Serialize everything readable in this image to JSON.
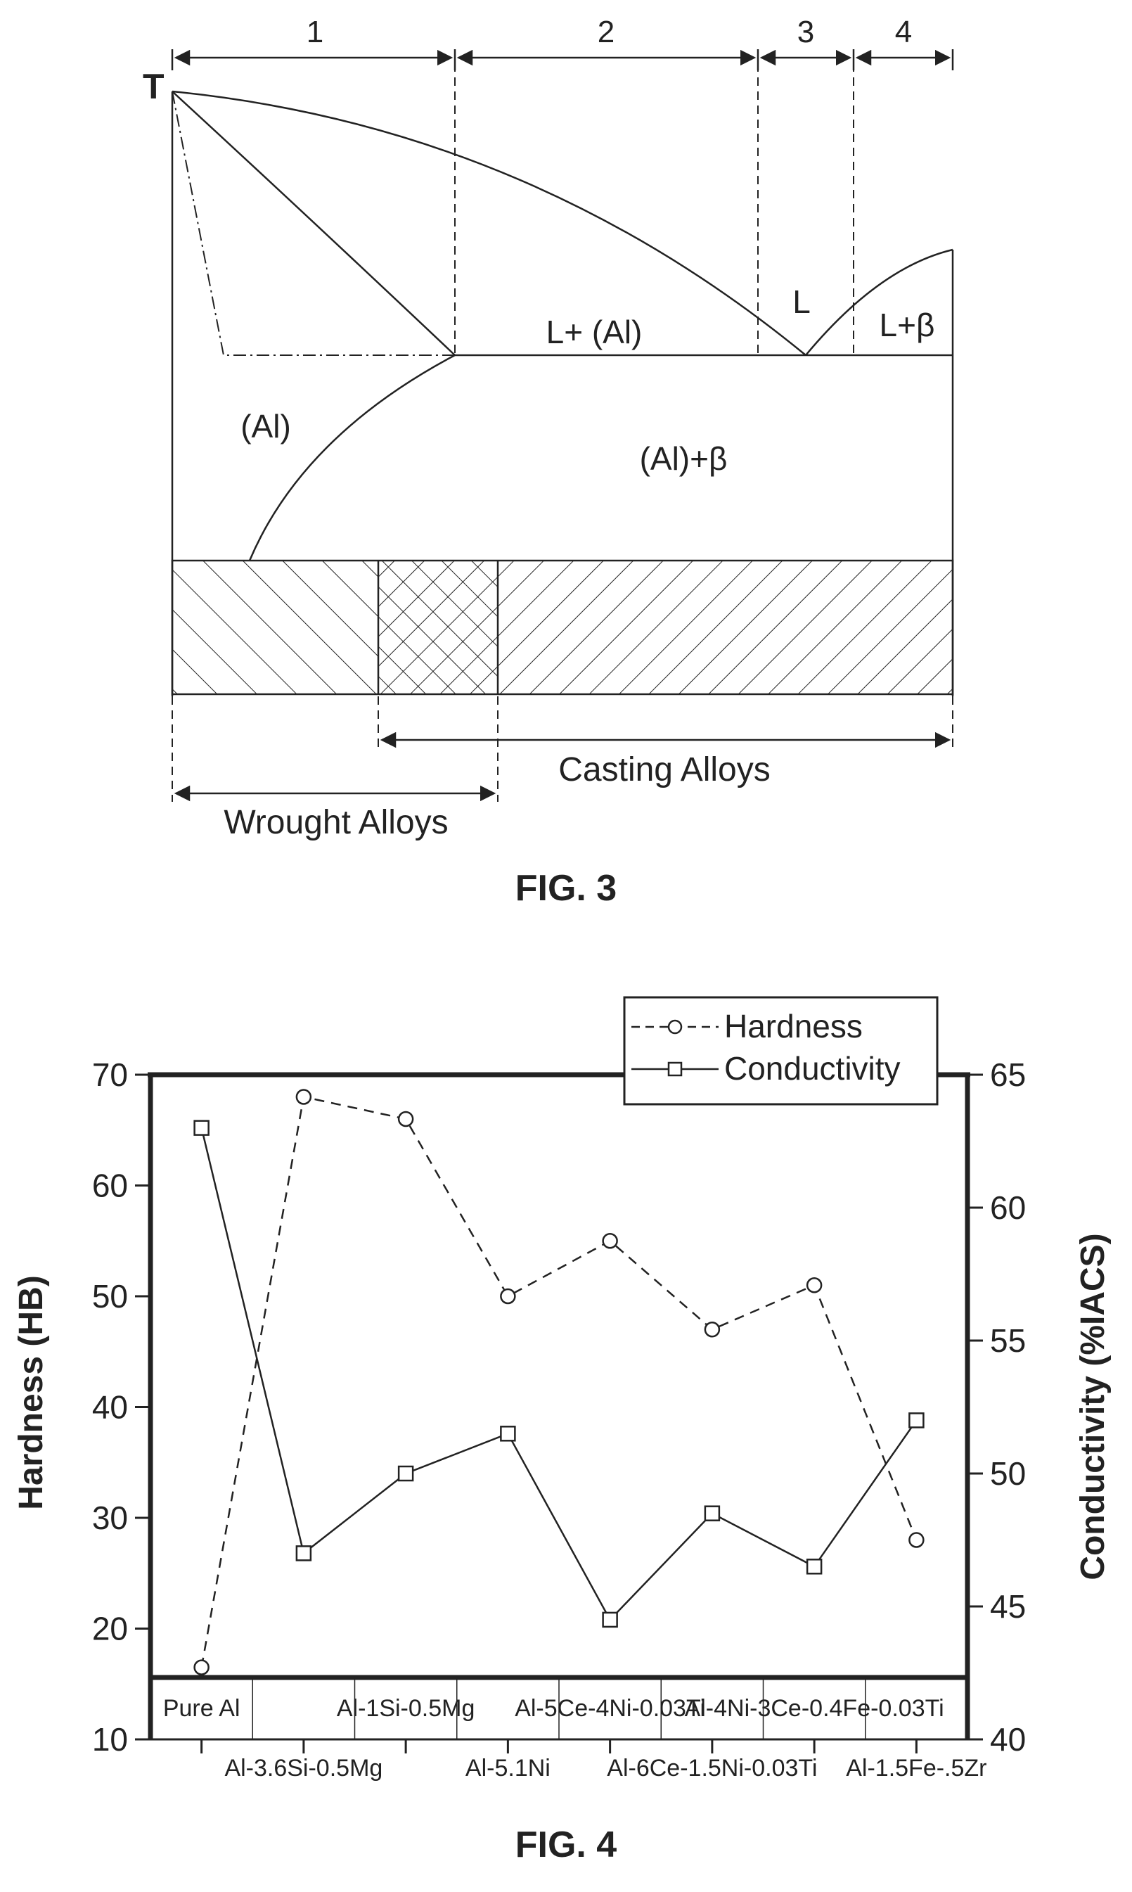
{
  "fig3": {
    "caption": "FIG. 3",
    "axis_label": "T",
    "region_numbers": [
      "1",
      "2",
      "3",
      "4"
    ],
    "phase_labels": {
      "al": "(Al)",
      "l_al": "L+ (Al)",
      "l": "L",
      "l_beta": "L+β",
      "al_beta": "(Al)+β"
    },
    "alloy_ranges": {
      "casting": "Casting Alloys",
      "wrought": "Wrought Alloys"
    }
  },
  "fig4": {
    "caption": "FIG. 4",
    "legend": {
      "hardness": "Hardness",
      "conductivity": "Conductivity"
    }
  },
  "chart_data": {
    "type": "line",
    "categories": [
      "Pure Al",
      "Al-3.6Si-0.5Mg",
      "Al-1Si-0.5Mg",
      "Al-5.1Ni",
      "Al-5Ce-4Ni-0.03Ti",
      "Al-6Ce-1.5Ni-0.03Ti",
      "Al-4Ni-3Ce-0.4Fe-0.03Ti",
      "Al-1.5Fe-.5Zr"
    ],
    "series": [
      {
        "name": "Hardness",
        "axis": "left",
        "style": "dashed",
        "marker": "circle",
        "values": [
          16.5,
          68,
          66,
          50,
          55,
          47,
          51,
          28
        ]
      },
      {
        "name": "Conductivity",
        "axis": "right",
        "style": "solid",
        "marker": "square",
        "values": [
          63,
          47,
          50,
          51.5,
          44.5,
          48.5,
          46.5,
          52
        ]
      }
    ],
    "ylabel": "Hardness (HB)",
    "ylabel_right": "Conductivity (%IACS)",
    "ylim": [
      10,
      70
    ],
    "ylim_right": [
      40,
      65
    ],
    "yticks": [
      "10",
      "20",
      "30",
      "40",
      "50",
      "60",
      "70"
    ],
    "yticks_right": [
      "40",
      "45",
      "50",
      "55",
      "60",
      "65"
    ],
    "legend_position": "top-right",
    "grid": false
  }
}
